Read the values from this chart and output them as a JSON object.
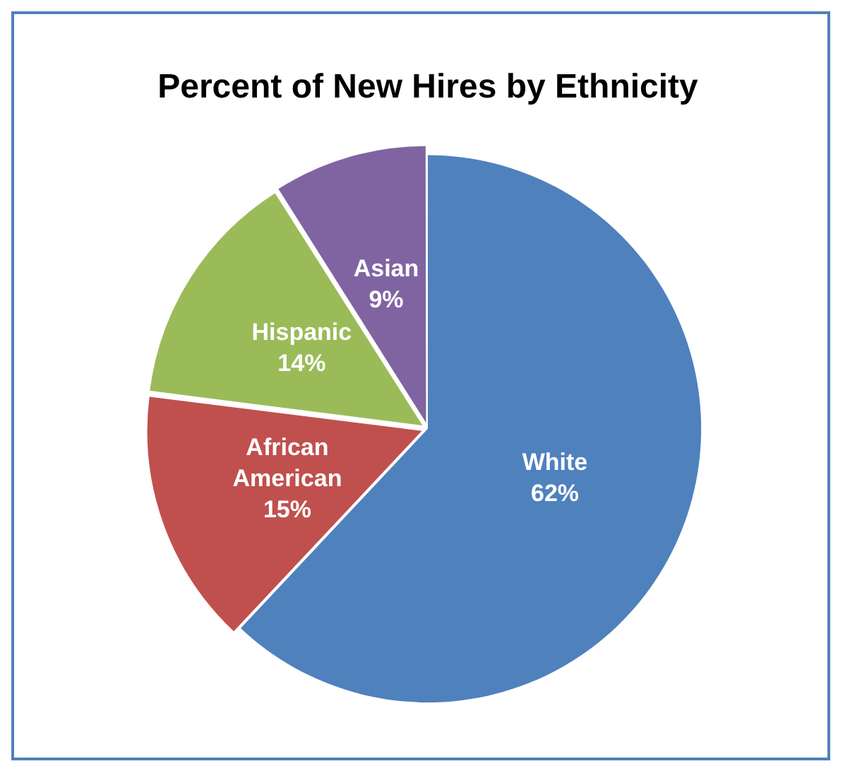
{
  "chart_data": {
    "type": "pie",
    "title": "Percent of New Hires by Ethnicity",
    "categories": [
      "White",
      "African American",
      "Hispanic",
      "Asian"
    ],
    "values": [
      62,
      15,
      14,
      9
    ],
    "value_labels": [
      "62%",
      "15%",
      "14%",
      "9%"
    ],
    "colors": [
      "#4f81bd",
      "#c0504d",
      "#9bbb59",
      "#8064a2"
    ],
    "legend": false
  }
}
